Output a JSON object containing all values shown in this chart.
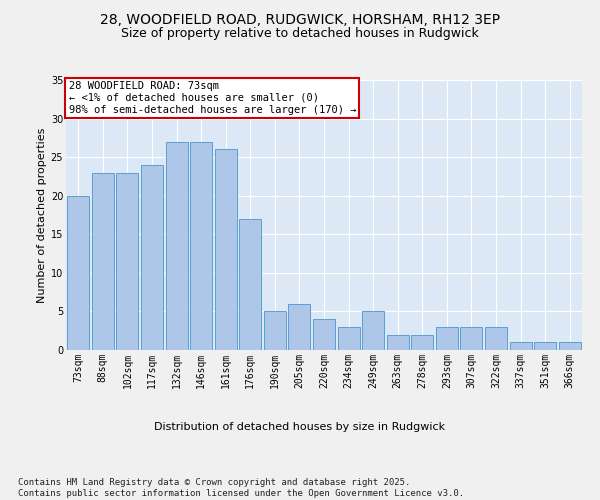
{
  "title_line1": "28, WOODFIELD ROAD, RUDGWICK, HORSHAM, RH12 3EP",
  "title_line2": "Size of property relative to detached houses in Rudgwick",
  "xlabel": "Distribution of detached houses by size in Rudgwick",
  "ylabel": "Number of detached properties",
  "categories": [
    "73sqm",
    "88sqm",
    "102sqm",
    "117sqm",
    "132sqm",
    "146sqm",
    "161sqm",
    "176sqm",
    "190sqm",
    "205sqm",
    "220sqm",
    "234sqm",
    "249sqm",
    "263sqm",
    "278sqm",
    "293sqm",
    "307sqm",
    "322sqm",
    "337sqm",
    "351sqm",
    "366sqm"
  ],
  "values": [
    20,
    23,
    23,
    24,
    27,
    27,
    26,
    17,
    5,
    6,
    4,
    3,
    5,
    2,
    2,
    3,
    3,
    3,
    1,
    1,
    1
  ],
  "bar_color": "#aec6e8",
  "bar_edge_color": "#5a9fd4",
  "annotation_box_text": "28 WOODFIELD ROAD: 73sqm\n← <1% of detached houses are smaller (0)\n98% of semi-detached houses are larger (170) →",
  "annotation_box_color": "#ffffff",
  "annotation_box_edge_color": "#cc0000",
  "ylim": [
    0,
    35
  ],
  "yticks": [
    0,
    5,
    10,
    15,
    20,
    25,
    30,
    35
  ],
  "bg_color": "#dce8f5",
  "grid_color": "#ffffff",
  "fig_bg_color": "#f0f0f0",
  "footer_text": "Contains HM Land Registry data © Crown copyright and database right 2025.\nContains public sector information licensed under the Open Government Licence v3.0.",
  "title_fontsize": 10,
  "subtitle_fontsize": 9,
  "axis_label_fontsize": 8,
  "tick_fontsize": 7,
  "annotation_fontsize": 7.5,
  "footer_fontsize": 6.5
}
